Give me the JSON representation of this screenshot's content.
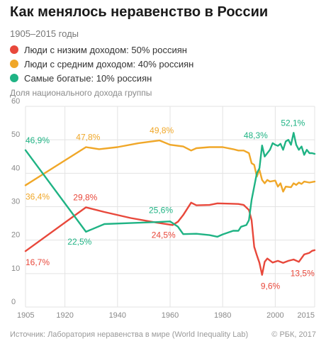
{
  "header": {
    "title": "Как менялось неравенство в России",
    "subtitle": "1905–2015 годы"
  },
  "footer": {
    "source": "Источник: Лаборатория неравенства в мире (World Inequality Lab)",
    "credit": "© РБК, 2017"
  },
  "chart_data": {
    "type": "line",
    "ylabel": "Доля национального дохода группы",
    "xlim": [
      1905,
      2015
    ],
    "ylim": [
      0,
      60
    ],
    "xticks": [
      "1905",
      "1920",
      "1940",
      "1960",
      "1980",
      "2000",
      "2015"
    ],
    "yticks": [
      "0",
      "10",
      "20",
      "30",
      "40",
      "50",
      "60"
    ],
    "grid": true,
    "legend_position": "top-left",
    "series": [
      {
        "name": "Люди с низким доходом: 50% россиян",
        "color": "#e8483b",
        "points": [
          [
            1905,
            16.7
          ],
          [
            1928,
            29.8
          ],
          [
            1935,
            28.4
          ],
          [
            1945,
            26.6
          ],
          [
            1955,
            25.2
          ],
          [
            1961,
            24.5
          ],
          [
            1963,
            25.5
          ],
          [
            1965,
            27.5
          ],
          [
            1968,
            31.2
          ],
          [
            1970,
            30.4
          ],
          [
            1975,
            30.5
          ],
          [
            1978,
            31
          ],
          [
            1983,
            30.9
          ],
          [
            1986,
            30.8
          ],
          [
            1988,
            30.5
          ],
          [
            1990,
            29
          ],
          [
            1991,
            26
          ],
          [
            1992,
            18
          ],
          [
            1993,
            15.5
          ],
          [
            1994,
            13.2
          ],
          [
            1995,
            9.6
          ],
          [
            1996,
            13.5
          ],
          [
            1997,
            14.5
          ],
          [
            1999,
            13.3
          ],
          [
            2001,
            13.8
          ],
          [
            2003,
            13.2
          ],
          [
            2005,
            13.8
          ],
          [
            2007,
            14.2
          ],
          [
            2009,
            13.5
          ],
          [
            2011,
            15.7
          ],
          [
            2013,
            16.2
          ],
          [
            2014,
            16.8
          ],
          [
            2015,
            17
          ]
        ]
      },
      {
        "name": "Люди с средним доходом: 40% россиян",
        "color": "#f0a728",
        "points": [
          [
            1905,
            36.4
          ],
          [
            1928,
            47.8
          ],
          [
            1933,
            47.2
          ],
          [
            1940,
            47.8
          ],
          [
            1948,
            49
          ],
          [
            1956,
            49.8
          ],
          [
            1960,
            48.5
          ],
          [
            1965,
            48
          ],
          [
            1968,
            46.8
          ],
          [
            1970,
            47.5
          ],
          [
            1975,
            47.8
          ],
          [
            1980,
            47.8
          ],
          [
            1984,
            47.2
          ],
          [
            1986,
            46.8
          ],
          [
            1988,
            46.8
          ],
          [
            1990,
            46
          ],
          [
            1991,
            43
          ],
          [
            1992,
            42.5
          ],
          [
            1993,
            39
          ],
          [
            1994,
            41
          ],
          [
            1995,
            38
          ],
          [
            1996,
            37
          ],
          [
            1997,
            38
          ],
          [
            1998,
            37.5
          ],
          [
            2000,
            37.8
          ],
          [
            2001,
            36
          ],
          [
            2002,
            37
          ],
          [
            2003,
            34.5
          ],
          [
            2004,
            36
          ],
          [
            2006,
            35.8
          ],
          [
            2007,
            37
          ],
          [
            2008,
            36.5
          ],
          [
            2009,
            37.2
          ],
          [
            2010,
            36.8
          ],
          [
            2011,
            37.5
          ],
          [
            2013,
            37.2
          ],
          [
            2015,
            37.5
          ]
        ]
      },
      {
        "name": "Самые богатые: 10% россиян",
        "color": "#1fb384",
        "points": [
          [
            1905,
            46.9
          ],
          [
            1928,
            22.5
          ],
          [
            1935,
            24.8
          ],
          [
            1945,
            25.1
          ],
          [
            1955,
            25.4
          ],
          [
            1960,
            25.6
          ],
          [
            1963,
            24
          ],
          [
            1965,
            21.8
          ],
          [
            1970,
            21.9
          ],
          [
            1975,
            21.5
          ],
          [
            1978,
            21
          ],
          [
            1980,
            21.7
          ],
          [
            1984,
            22.8
          ],
          [
            1986,
            22.8
          ],
          [
            1987,
            24
          ],
          [
            1989,
            24.5
          ],
          [
            1990,
            26
          ],
          [
            1991,
            32
          ],
          [
            1992,
            36
          ],
          [
            1993,
            40
          ],
          [
            1994,
            41.5
          ],
          [
            1995,
            48.3
          ],
          [
            1996,
            45
          ],
          [
            1997,
            46
          ],
          [
            1998,
            47
          ],
          [
            1999,
            49
          ],
          [
            2000,
            48.5
          ],
          [
            2001,
            48.2
          ],
          [
            2002,
            48.8
          ],
          [
            2003,
            47
          ],
          [
            2004,
            49.5
          ],
          [
            2005,
            50
          ],
          [
            2006,
            48.5
          ],
          [
            2007,
            52.1
          ],
          [
            2008,
            48.5
          ],
          [
            2009,
            47
          ],
          [
            2010,
            48
          ],
          [
            2011,
            45.5
          ],
          [
            2012,
            47
          ],
          [
            2013,
            46
          ],
          [
            2014,
            46
          ],
          [
            2015,
            45.8
          ]
        ]
      }
    ],
    "labels": [
      {
        "series": 0,
        "x": 1905,
        "y": 16.7,
        "text": "16,7%"
      },
      {
        "series": 0,
        "x": 1928,
        "y": 29.8,
        "text": "29,8%"
      },
      {
        "series": 0,
        "x": 1961,
        "y": 24.5,
        "text": "24,5%"
      },
      {
        "series": 0,
        "x": 1995,
        "y": 9.6,
        "text": "9,6%"
      },
      {
        "series": 0,
        "x": 2009,
        "y": 13.5,
        "text": "13,5%"
      },
      {
        "series": 1,
        "x": 1905,
        "y": 36.4,
        "text": "36,4%"
      },
      {
        "series": 1,
        "x": 1928,
        "y": 47.8,
        "text": "47,8%"
      },
      {
        "series": 1,
        "x": 1956,
        "y": 49.8,
        "text": "49,8%"
      },
      {
        "series": 2,
        "x": 1905,
        "y": 46.9,
        "text": "46,9%"
      },
      {
        "series": 2,
        "x": 1928,
        "y": 22.5,
        "text": "22,5%"
      },
      {
        "series": 2,
        "x": 1960,
        "y": 25.6,
        "text": "25,6%"
      },
      {
        "series": 2,
        "x": 1995,
        "y": 48.3,
        "text": "48,3%"
      },
      {
        "series": 2,
        "x": 2007,
        "y": 52.1,
        "text": "52,1%"
      }
    ]
  }
}
